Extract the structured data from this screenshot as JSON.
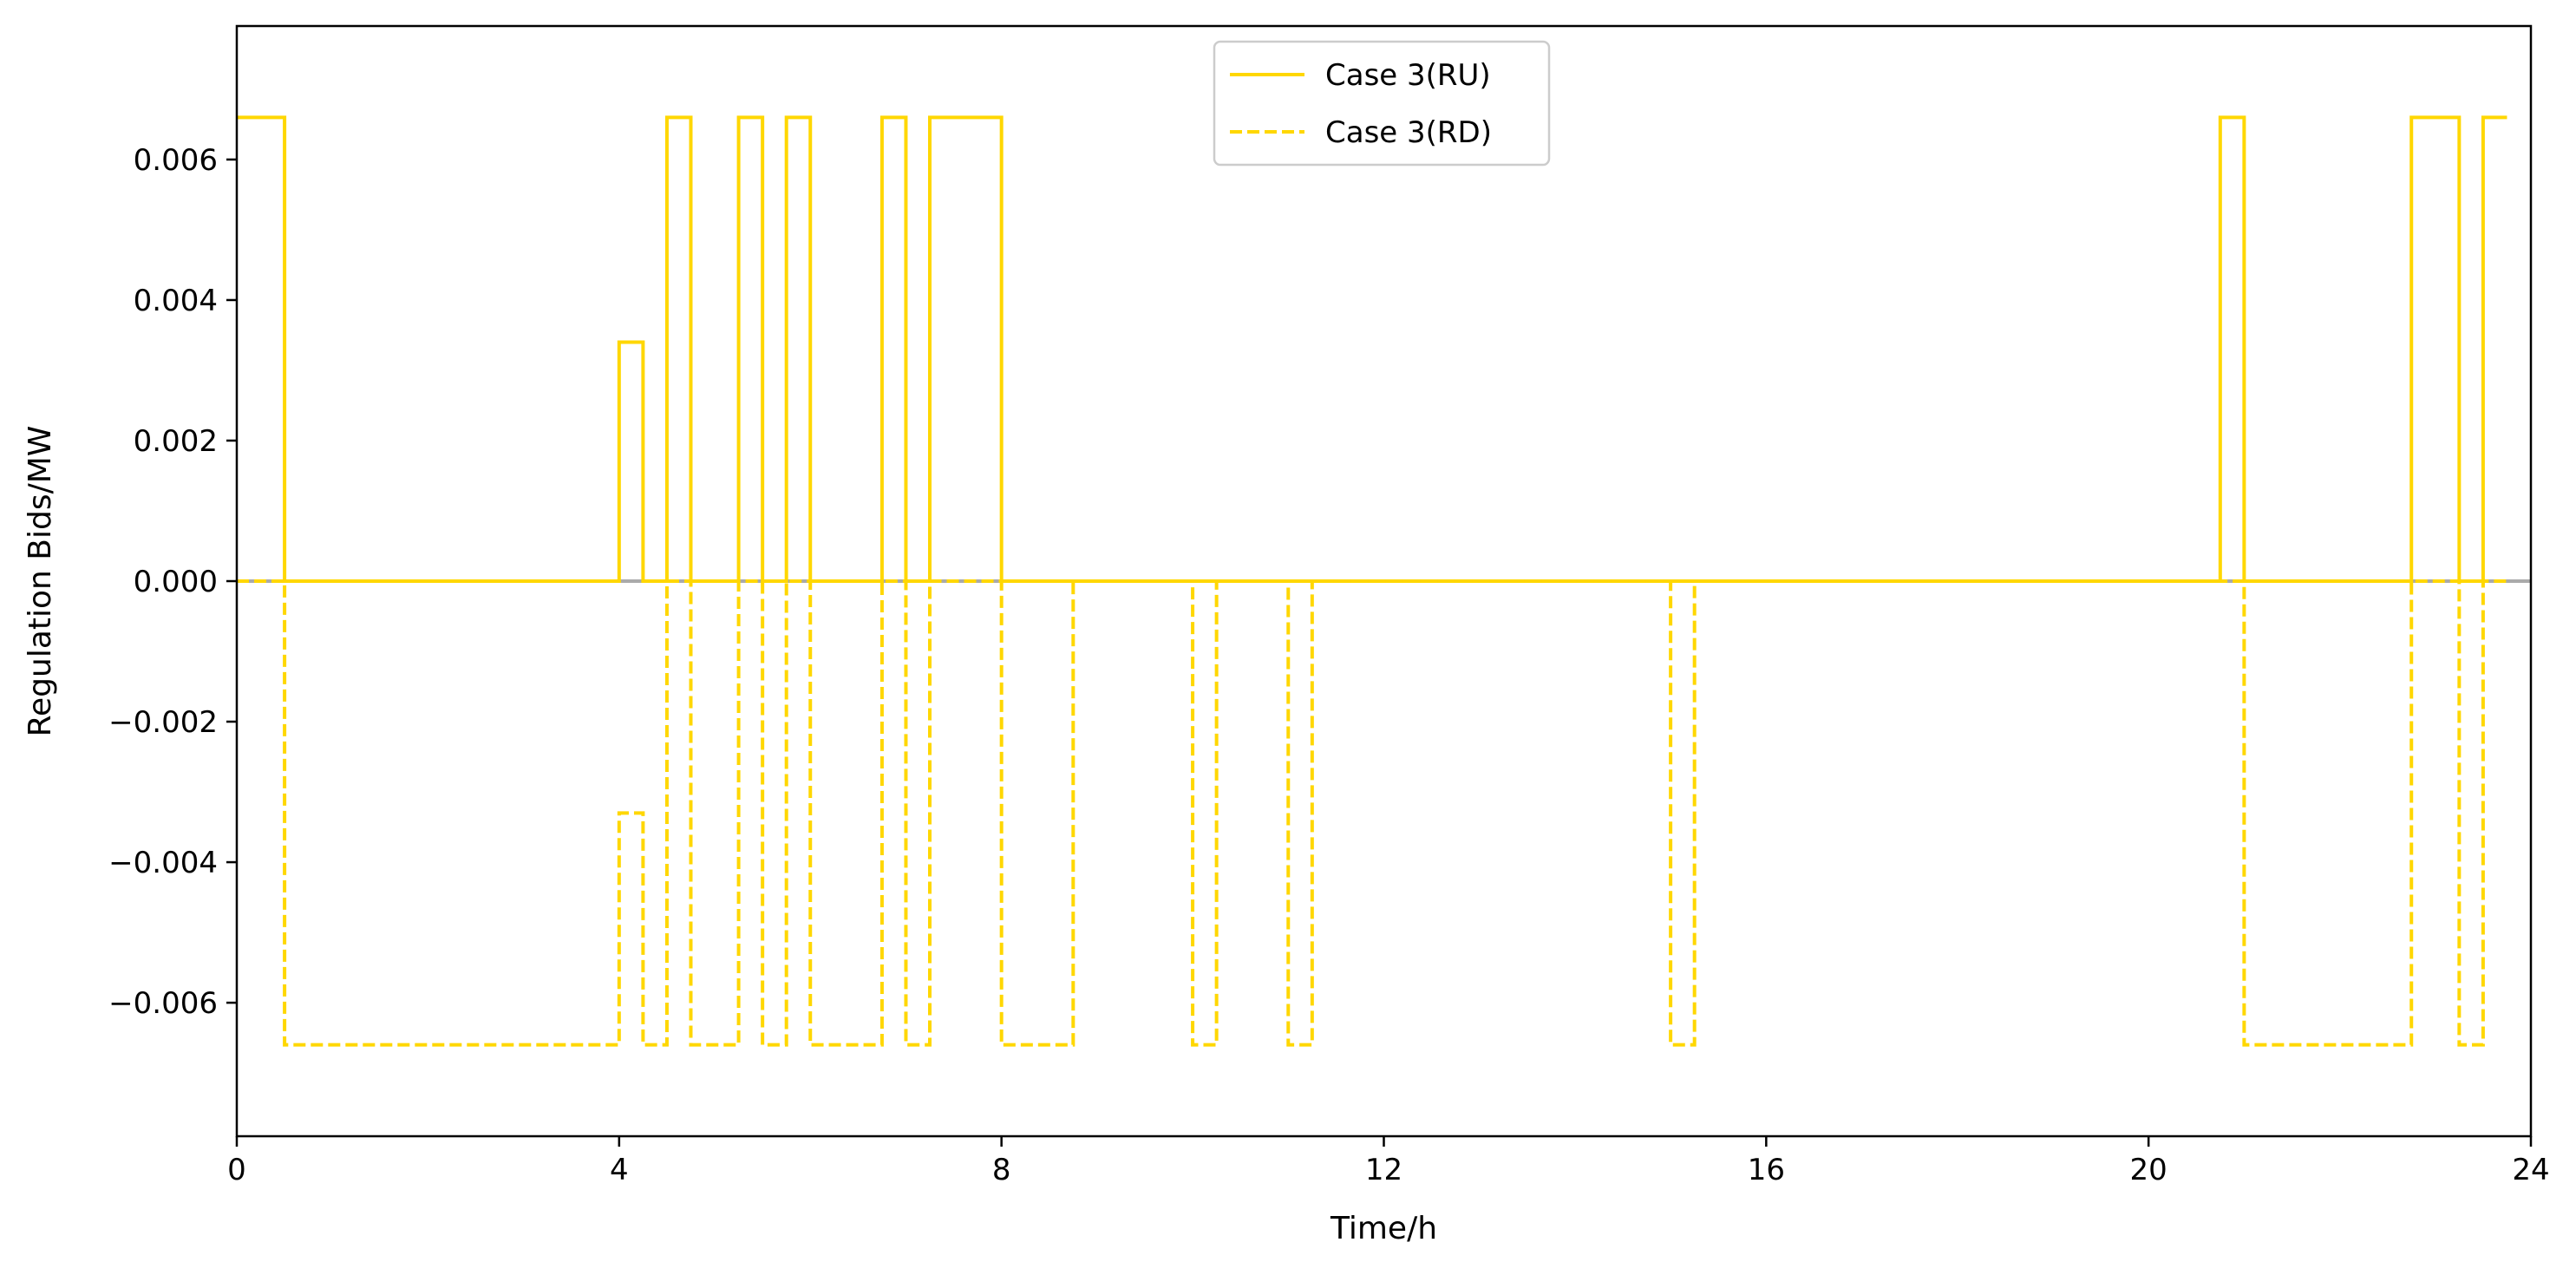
{
  "chart_data": {
    "type": "line",
    "step": "post",
    "title": "",
    "xlabel": "Time/h",
    "ylabel": "Regulation Bids/MW",
    "xlim": [
      0,
      24
    ],
    "ylim": [
      -0.0079,
      0.0079
    ],
    "xticks": [
      0,
      4,
      8,
      12,
      16,
      20,
      24
    ],
    "xtick_labels": [
      "0",
      "4",
      "8",
      "12",
      "16",
      "20",
      "24"
    ],
    "yticks": [
      -0.006,
      -0.004,
      -0.002,
      0.0,
      0.002,
      0.004,
      0.006
    ],
    "ytick_labels": [
      "−0.006",
      "−0.004",
      "−0.002",
      "0.000",
      "0.002",
      "0.004",
      "0.006"
    ],
    "grid": false,
    "legend_position": "top-center",
    "zero_line_color": "#aaaaaa",
    "series": [
      {
        "name": "Case 3(RU)",
        "style": "solid",
        "color": "#ffd700",
        "x": [
          0,
          0.5,
          4,
          4.25,
          4.5,
          4.75,
          5.25,
          5.5,
          5.75,
          6,
          6.75,
          7,
          7.25,
          8,
          20.75,
          21,
          22.75,
          23.25,
          23.5,
          23.75
        ],
        "y": [
          0.0066,
          0,
          0.0034,
          0,
          0.0066,
          0,
          0.0066,
          0,
          0.0066,
          0,
          0.0066,
          0,
          0.0066,
          0,
          0.0066,
          0,
          0.0066,
          0,
          0.0066,
          0.0066
        ]
      },
      {
        "name": "Case 3(RD)",
        "style": "dashed",
        "color": "#ffd700",
        "x": [
          0,
          0.5,
          4,
          4.25,
          4.5,
          4.75,
          5.25,
          5.5,
          5.75,
          6,
          6.75,
          7,
          7.25,
          8,
          8.75,
          10,
          10.25,
          11,
          11.25,
          15,
          15.25,
          21,
          22.75,
          23.25,
          23.5,
          23.75
        ],
        "y": [
          0,
          -0.0066,
          -0.0033,
          -0.0066,
          0,
          -0.0066,
          0,
          -0.0066,
          0,
          -0.0066,
          0,
          -0.0066,
          0,
          -0.0066,
          0,
          -0.0066,
          0,
          -0.0066,
          0,
          -0.0066,
          0,
          -0.0066,
          0,
          -0.0066,
          0,
          0
        ]
      }
    ]
  }
}
